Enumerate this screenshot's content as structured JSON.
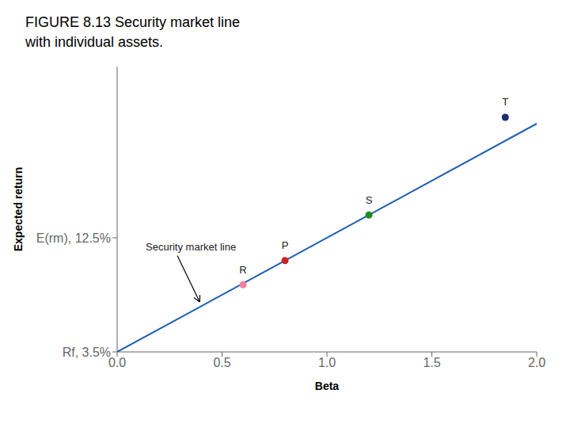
{
  "chart_data": {
    "type": "scatter",
    "title": "FIGURE 8.13  Security market line",
    "subtitle": "with individual assets.",
    "x_label": "Beta",
    "y_label": "Expected return",
    "xlim": [
      0.0,
      2.0
    ],
    "ylim": [
      0.035,
      0.26
    ],
    "xticks": [
      {
        "value": 0.0,
        "label": "0.0"
      },
      {
        "value": 0.5,
        "label": "0.5"
      },
      {
        "value": 1.0,
        "label": "1.0"
      },
      {
        "value": 1.5,
        "label": "1.5"
      },
      {
        "value": 2.0,
        "label": "2.0"
      }
    ],
    "yticks": [
      {
        "value": 0.035,
        "label": "Rf, 3.5%"
      },
      {
        "value": 0.125,
        "label": "E(rm), 12.5%"
      }
    ],
    "grid": false,
    "annotations": [
      "Security market line"
    ],
    "series": [
      {
        "type": "line",
        "color": "#2060b0",
        "x": [
          0.0,
          2.0
        ],
        "values": [
          0.035,
          0.215
        ]
      },
      {
        "type": "scatter",
        "labels": [
          "R",
          "P",
          "S",
          "T"
        ],
        "x": [
          0.6,
          0.8,
          1.2,
          1.85
        ],
        "values": [
          0.088,
          0.107,
          0.143,
          0.22
        ],
        "colors": [
          "#f080a0",
          "#cc2222",
          "#228B22",
          "#1a2f6e"
        ]
      }
    ]
  }
}
